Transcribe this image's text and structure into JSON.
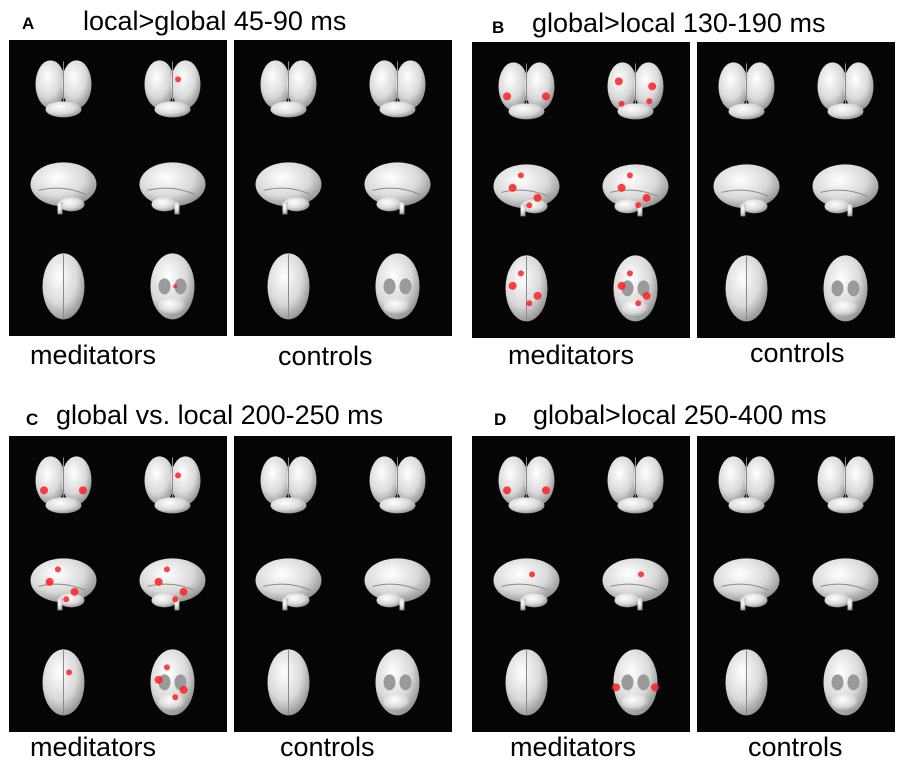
{
  "panels": [
    {
      "letter": "A",
      "title": "local>global 45-90 ms",
      "group_labels": [
        "meditators",
        "controls"
      ],
      "activation": {
        "meditators": [
          "none",
          "spot",
          "none",
          "none",
          "none",
          "faint"
        ],
        "controls": [
          "none",
          "none",
          "none",
          "none",
          "none",
          "none"
        ]
      }
    },
    {
      "letter": "B",
      "title": "global>local 130-190 ms",
      "group_labels": [
        "meditators",
        "controls"
      ],
      "activation": {
        "meditators": [
          "bilateral",
          "diffuse",
          "multi",
          "multi",
          "multi",
          "multi"
        ],
        "controls": [
          "none",
          "none",
          "none",
          "none",
          "none",
          "none"
        ]
      }
    },
    {
      "letter": "C",
      "title": "global vs. local 200-250 ms",
      "group_labels": [
        "meditators",
        "controls"
      ],
      "activation": {
        "meditators": [
          "bilateral",
          "spot",
          "multi",
          "multi",
          "spot",
          "multi"
        ],
        "controls": [
          "none",
          "none",
          "none",
          "none",
          "none",
          "none"
        ]
      }
    },
    {
      "letter": "D",
      "title": "global>local 250-400 ms",
      "group_labels": [
        "meditators",
        "controls"
      ],
      "activation": {
        "meditators": [
          "bilateral",
          "none",
          "spot",
          "spot",
          "none",
          "bilateral"
        ],
        "controls": [
          "none",
          "none",
          "none",
          "none",
          "none",
          "none"
        ]
      }
    }
  ],
  "colors": {
    "background": "#050505",
    "brain": "#d9d9d9",
    "activation": "#ff2020"
  }
}
